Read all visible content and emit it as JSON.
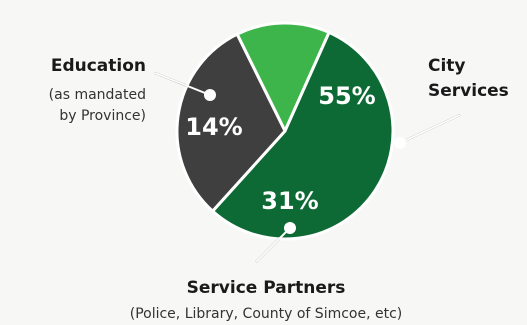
{
  "chart_data": {
    "type": "pie",
    "slices": [
      {
        "key": "city",
        "label": "City Services",
        "label_lines": [
          "City",
          "Services"
        ],
        "sublabel_lines": [],
        "value": 55,
        "value_label": "55%",
        "color": "#0e6a34"
      },
      {
        "key": "partners",
        "label": "Service Partners",
        "label_lines": [
          "Service Partners"
        ],
        "sublabel_lines": [
          "(Police, Library, County of Simcoe, etc)"
        ],
        "value": 31,
        "value_label": "31%",
        "color": "#3f3f40"
      },
      {
        "key": "education",
        "label": "Education",
        "label_lines": [
          "Education"
        ],
        "sublabel_lines": [
          "(as mandated",
          "by Province)"
        ],
        "value": 14,
        "value_label": "14%",
        "color": "#3db54a"
      }
    ],
    "slice_border_color": "#ffffff",
    "leader_color": "#111111"
  }
}
